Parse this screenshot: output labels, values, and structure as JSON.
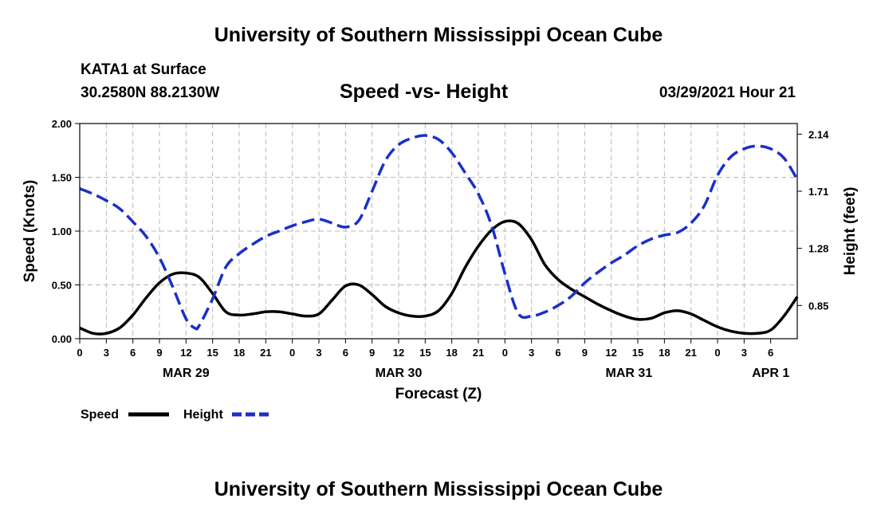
{
  "header": {
    "title": "University of Southern Mississippi Ocean Cube",
    "station": "KATA1 at Surface",
    "coords": "30.2580N  88.2130W",
    "forecast_time": "03/29/2021 Hour 21"
  },
  "footer": {
    "title": "University of Southern Mississippi Ocean Cube"
  },
  "chart_data": {
    "type": "line",
    "title": "Speed -vs- Height",
    "xlabel": "Forecast (Z)",
    "ylabel": "Speed (Knots)",
    "y2label": "Height (feet)",
    "x_hours": [
      0,
      81
    ],
    "x_tick_step_hours": 3,
    "x_tick_labels": [
      "0",
      "3",
      "6",
      "9",
      "12",
      "15",
      "18",
      "21",
      "0",
      "3",
      "6",
      "9",
      "12",
      "15",
      "18",
      "21",
      "0",
      "3",
      "6",
      "9",
      "12",
      "15",
      "18",
      "21",
      "0",
      "3",
      "6"
    ],
    "date_labels": [
      {
        "label": "MAR 29",
        "hour": 12
      },
      {
        "label": "MAR 30",
        "hour": 36
      },
      {
        "label": "MAR 31",
        "hour": 62
      },
      {
        "label": "APR 1",
        "hour": 78
      }
    ],
    "ylim": [
      0,
      2.0
    ],
    "y_ticks": [
      0.0,
      0.5,
      1.0,
      1.5,
      2.0
    ],
    "y_tick_labels": [
      "0.00",
      "0.50",
      "1.00",
      "1.50",
      "2.00"
    ],
    "y2lim": [
      0.6,
      2.22
    ],
    "y2_ticks": [
      0.85,
      1.28,
      1.71,
      2.14
    ],
    "y2_tick_labels": [
      "0.85",
      "1.28",
      "1.71",
      "2.14"
    ],
    "grid": true,
    "series": [
      {
        "name": "Speed",
        "axis": "left",
        "color": "#000000",
        "dashed": false,
        "points": [
          [
            0,
            0.1
          ],
          [
            1.5,
            0.05
          ],
          [
            3,
            0.05
          ],
          [
            4.5,
            0.1
          ],
          [
            6,
            0.22
          ],
          [
            7.5,
            0.38
          ],
          [
            9,
            0.52
          ],
          [
            10.5,
            0.6
          ],
          [
            12,
            0.61
          ],
          [
            13.5,
            0.57
          ],
          [
            15,
            0.42
          ],
          [
            16.5,
            0.25
          ],
          [
            18,
            0.22
          ],
          [
            19.5,
            0.23
          ],
          [
            21,
            0.25
          ],
          [
            22.5,
            0.25
          ],
          [
            24,
            0.23
          ],
          [
            25.5,
            0.21
          ],
          [
            27,
            0.23
          ],
          [
            28.5,
            0.36
          ],
          [
            30,
            0.49
          ],
          [
            31.5,
            0.5
          ],
          [
            33,
            0.41
          ],
          [
            34.5,
            0.3
          ],
          [
            36,
            0.24
          ],
          [
            37.5,
            0.21
          ],
          [
            39,
            0.21
          ],
          [
            40.5,
            0.26
          ],
          [
            42,
            0.42
          ],
          [
            43.5,
            0.66
          ],
          [
            45,
            0.86
          ],
          [
            46.5,
            1.01
          ],
          [
            48,
            1.09
          ],
          [
            49.5,
            1.07
          ],
          [
            51,
            0.92
          ],
          [
            52.5,
            0.69
          ],
          [
            54,
            0.55
          ],
          [
            55.5,
            0.46
          ],
          [
            57,
            0.39
          ],
          [
            58.5,
            0.32
          ],
          [
            60,
            0.26
          ],
          [
            61.5,
            0.21
          ],
          [
            63,
            0.18
          ],
          [
            64.5,
            0.19
          ],
          [
            66,
            0.24
          ],
          [
            67.5,
            0.26
          ],
          [
            69,
            0.23
          ],
          [
            70.5,
            0.17
          ],
          [
            72,
            0.11
          ],
          [
            73.5,
            0.07
          ],
          [
            75,
            0.05
          ],
          [
            76.5,
            0.05
          ],
          [
            78,
            0.08
          ],
          [
            79.5,
            0.21
          ],
          [
            81,
            0.39
          ]
        ]
      },
      {
        "name": "Height",
        "axis": "right",
        "color": "#1c2fc9",
        "dashed": true,
        "points": [
          [
            0,
            1.73
          ],
          [
            1.5,
            1.69
          ],
          [
            3,
            1.64
          ],
          [
            4.5,
            1.58
          ],
          [
            6,
            1.48
          ],
          [
            7.5,
            1.37
          ],
          [
            9,
            1.21
          ],
          [
            10.5,
            0.99
          ],
          [
            12,
            0.75
          ],
          [
            13,
            0.68
          ],
          [
            13.5,
            0.7
          ],
          [
            15,
            0.9
          ],
          [
            16.5,
            1.14
          ],
          [
            18,
            1.24
          ],
          [
            19.5,
            1.31
          ],
          [
            21,
            1.37
          ],
          [
            22.5,
            1.41
          ],
          [
            24,
            1.45
          ],
          [
            25.5,
            1.48
          ],
          [
            27,
            1.5
          ],
          [
            28.5,
            1.47
          ],
          [
            30,
            1.44
          ],
          [
            31.5,
            1.49
          ],
          [
            33,
            1.71
          ],
          [
            34.5,
            1.94
          ],
          [
            36,
            2.06
          ],
          [
            37.5,
            2.11
          ],
          [
            39,
            2.13
          ],
          [
            40.5,
            2.1
          ],
          [
            42,
            2.0
          ],
          [
            43.5,
            1.85
          ],
          [
            45,
            1.69
          ],
          [
            46.5,
            1.45
          ],
          [
            48,
            1.09
          ],
          [
            49.5,
            0.79
          ],
          [
            51,
            0.77
          ],
          [
            52.5,
            0.8
          ],
          [
            54,
            0.85
          ],
          [
            55.5,
            0.92
          ],
          [
            57,
            1.02
          ],
          [
            58.5,
            1.1
          ],
          [
            60,
            1.17
          ],
          [
            61.5,
            1.23
          ],
          [
            63,
            1.3
          ],
          [
            64.5,
            1.35
          ],
          [
            66,
            1.38
          ],
          [
            67.5,
            1.4
          ],
          [
            69,
            1.47
          ],
          [
            70.5,
            1.6
          ],
          [
            72,
            1.83
          ],
          [
            73.5,
            1.97
          ],
          [
            75,
            2.03
          ],
          [
            76.5,
            2.05
          ],
          [
            78,
            2.03
          ],
          [
            79.5,
            1.96
          ],
          [
            81,
            1.8
          ]
        ]
      }
    ],
    "legend": [
      {
        "label": "Speed",
        "color": "#000000",
        "dashed": false
      },
      {
        "label": "Height",
        "color": "#1c2fc9",
        "dashed": true
      }
    ]
  }
}
